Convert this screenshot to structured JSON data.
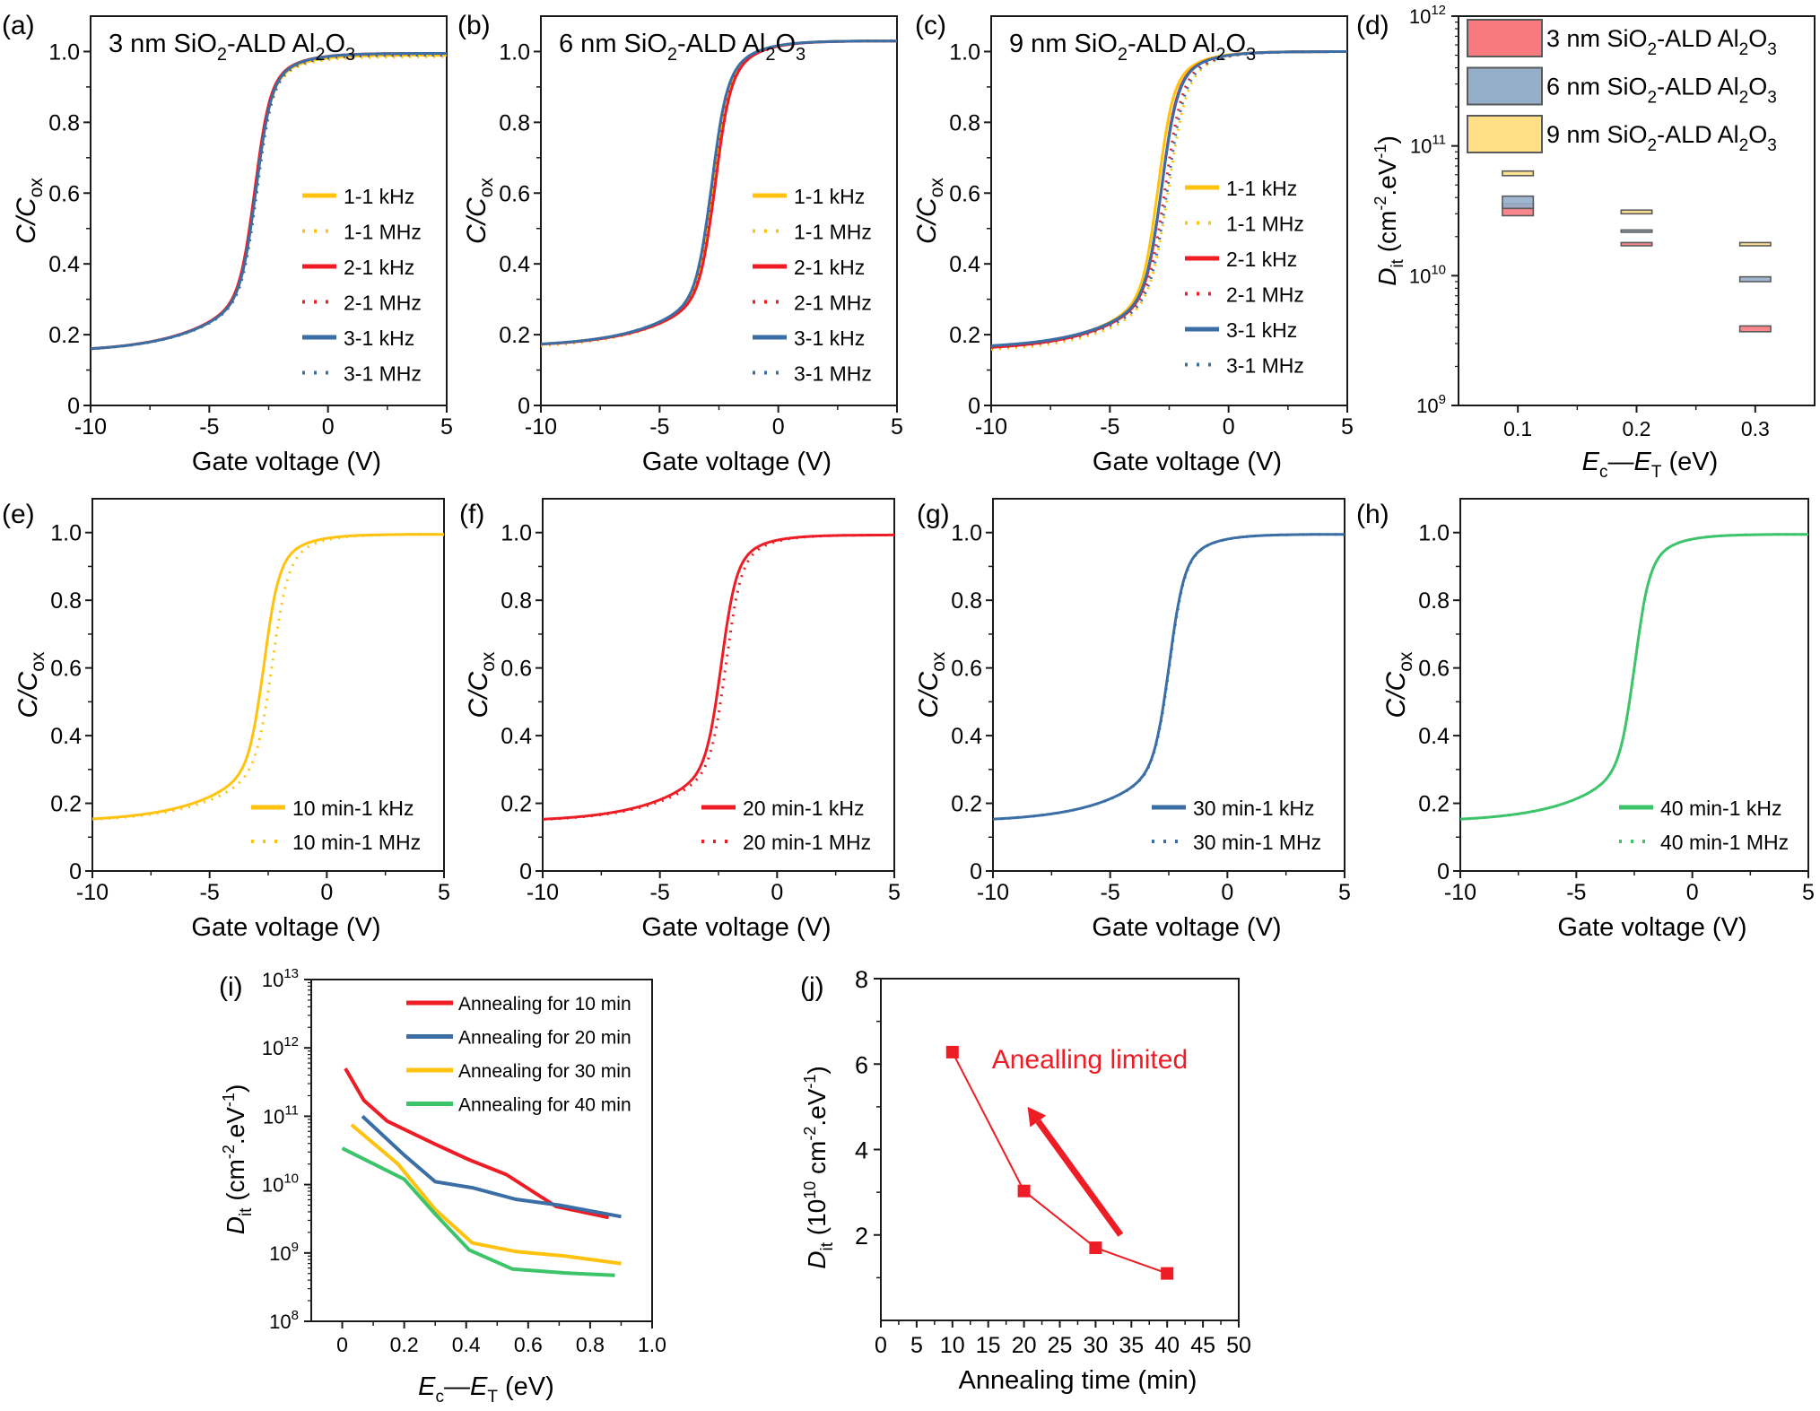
{
  "figure": {
    "colors": {
      "yellow": "#FFC20E",
      "red": "#EE1C25",
      "blue": "#3A6EA5",
      "green": "#3DC46A",
      "box_red": "#F87A7E",
      "box_blue": "#95AFCB",
      "box_yellow": "#FFDF85",
      "box_edge": "#5A5A5A",
      "axis": "#1A1A1A"
    }
  },
  "chart_data": [
    {
      "id": "a",
      "panel_label": "(a)",
      "type": "line",
      "title": "3 nm SiO2-ALD Al2O3",
      "title_parts": {
        "pre": "3 nm SiO",
        "sub1": "2",
        "mid": "-ALD Al",
        "sub2": "2",
        "mid2": "O",
        "sub3": "3"
      },
      "xlabel": "Gate voltage (V)",
      "ylabel": "C/C",
      "ylabel_sub": "ox",
      "xlim": [
        -10,
        5
      ],
      "ylim": [
        0,
        1.1
      ],
      "xticks": [
        -10,
        -5,
        0,
        5
      ],
      "xtick_labels": [
        "-10",
        "-5",
        "0",
        "5"
      ],
      "yticks": [
        0,
        0.2,
        0.4,
        0.6,
        0.8,
        1.0
      ],
      "ytick_labels": [
        "0",
        "0.2",
        "0.4",
        "0.6",
        "0.8",
        "1.0"
      ],
      "legend_position": "center-right",
      "series": [
        {
          "name": "1-1 kHz",
          "color": "yellow",
          "style": "solid",
          "vth": -3.05,
          "cmin": 0.15,
          "cmax": 0.99,
          "steep": 1.0
        },
        {
          "name": "1-1 MHz",
          "color": "yellow",
          "style": "dotted",
          "vth": -3.0,
          "cmin": 0.15,
          "cmax": 0.985,
          "steep": 1.0
        },
        {
          "name": "2-1 kHz",
          "color": "red",
          "style": "solid",
          "vth": -3.1,
          "cmin": 0.15,
          "cmax": 0.995,
          "steep": 1.0
        },
        {
          "name": "2-1 MHz",
          "color": "red",
          "style": "dotted",
          "vth": -3.05,
          "cmin": 0.15,
          "cmax": 0.99,
          "steep": 1.0
        },
        {
          "name": "3-1 kHz",
          "color": "blue",
          "style": "solid",
          "vth": -3.05,
          "cmin": 0.15,
          "cmax": 0.995,
          "steep": 1.0
        },
        {
          "name": "3-1 MHz",
          "color": "blue",
          "style": "dotted",
          "vth": -3.0,
          "cmin": 0.15,
          "cmax": 0.99,
          "steep": 1.0
        }
      ]
    },
    {
      "id": "b",
      "panel_label": "(b)",
      "type": "line",
      "title": "6 nm SiO2-ALD Al2O3",
      "title_parts": {
        "pre": "6 nm SiO",
        "sub1": "2",
        "mid": "-ALD Al",
        "sub2": "2",
        "mid2": "O",
        "sub3": "3"
      },
      "xlabel": "Gate voltage (V)",
      "ylabel": "C/C",
      "ylabel_sub": "ox",
      "xlim": [
        -10,
        5
      ],
      "ylim": [
        0,
        1.1
      ],
      "xticks": [
        -10,
        -5,
        0,
        5
      ],
      "xtick_labels": [
        "-10",
        "-5",
        "0",
        "5"
      ],
      "yticks": [
        0,
        0.2,
        0.4,
        0.6,
        0.8,
        1.0
      ],
      "ytick_labels": [
        "0",
        "0.2",
        "0.4",
        "0.6",
        "0.8",
        "1.0"
      ],
      "legend_position": "center-right",
      "series": [
        {
          "name": "1-1 kHz",
          "color": "yellow",
          "style": "solid",
          "vth": -2.8,
          "cmin": 0.165,
          "cmax": 1.03,
          "steep": 1.0
        },
        {
          "name": "1-1 MHz",
          "color": "yellow",
          "style": "dotted",
          "vth": -2.75,
          "cmin": 0.16,
          "cmax": 1.03,
          "steep": 1.0
        },
        {
          "name": "2-1 kHz",
          "color": "red",
          "style": "solid",
          "vth": -2.7,
          "cmin": 0.165,
          "cmax": 1.03,
          "steep": 1.0
        },
        {
          "name": "2-1 MHz",
          "color": "red",
          "style": "dotted",
          "vth": -2.75,
          "cmin": 0.165,
          "cmax": 1.03,
          "steep": 1.0
        },
        {
          "name": "3-1 kHz",
          "color": "blue",
          "style": "solid",
          "vth": -2.85,
          "cmin": 0.165,
          "cmax": 1.03,
          "steep": 1.0
        },
        {
          "name": "3-1 MHz",
          "color": "blue",
          "style": "dotted",
          "vth": -2.85,
          "cmin": 0.165,
          "cmax": 1.03,
          "steep": 1.0
        }
      ]
    },
    {
      "id": "c",
      "panel_label": "(c)",
      "type": "line",
      "title": "9 nm SiO2-ALD Al2O3",
      "title_parts": {
        "pre": "9 nm SiO",
        "sub1": "2",
        "mid": "-ALD Al",
        "sub2": "2",
        "mid2": "O",
        "sub3": "3"
      },
      "xlabel": "Gate voltage (V)",
      "ylabel": "C/C",
      "ylabel_sub": "ox",
      "xlim": [
        -10,
        5
      ],
      "ylim": [
        0,
        1.1
      ],
      "xticks": [
        -10,
        -5,
        0,
        5
      ],
      "xtick_labels": [
        "-10",
        "-5",
        "0",
        "5"
      ],
      "yticks": [
        0,
        0.2,
        0.4,
        0.6,
        0.8,
        1.0
      ],
      "ytick_labels": [
        "0",
        "0.2",
        "0.4",
        "0.6",
        "0.8",
        "1.0"
      ],
      "legend_position": "center-right",
      "series": [
        {
          "name": "1-1 kHz",
          "color": "yellow",
          "style": "solid",
          "vth": -3.0,
          "cmin": 0.155,
          "cmax": 1.0,
          "steep": 1.0
        },
        {
          "name": "1-1 MHz",
          "color": "yellow",
          "style": "dotted",
          "vth": -2.55,
          "cmin": 0.15,
          "cmax": 1.0,
          "steep": 0.85
        },
        {
          "name": "2-1 kHz",
          "color": "red",
          "style": "solid",
          "vth": -2.85,
          "cmin": 0.155,
          "cmax": 1.0,
          "steep": 1.0
        },
        {
          "name": "2-1 MHz",
          "color": "red",
          "style": "dotted",
          "vth": -2.7,
          "cmin": 0.155,
          "cmax": 1.0,
          "steep": 0.9
        },
        {
          "name": "3-1 kHz",
          "color": "blue",
          "style": "solid",
          "vth": -2.85,
          "cmin": 0.16,
          "cmax": 1.0,
          "steep": 0.95
        },
        {
          "name": "3-1 MHz",
          "color": "blue",
          "style": "dotted",
          "vth": -2.6,
          "cmin": 0.16,
          "cmax": 1.0,
          "steep": 0.9
        }
      ]
    },
    {
      "id": "d",
      "panel_label": "(d)",
      "type": "box",
      "xlabel": "E",
      "xlabel_sub1": "c",
      "xlabel_mid": "—E",
      "xlabel_sub2": "T",
      "xlabel_post": " (eV)",
      "ylabel": "D",
      "ylabel_sub": "it",
      "ylabel_post": " (cm",
      "ylabel_sup1": "-2",
      "ylabel_mid": ".eV",
      "ylabel_sup2": "-1",
      "ylabel_end": ")",
      "yscale": "log",
      "ylim": [
        1000000000.0,
        1000000000000.0
      ],
      "xlim": [
        0.05,
        0.35
      ],
      "xticks": [
        0.1,
        0.2,
        0.3
      ],
      "xtick_labels": [
        "0.1",
        "0.2",
        "0.3"
      ],
      "yticks_exp": [
        9,
        10,
        11,
        12
      ],
      "legend_position": "top",
      "series": [
        {
          "name": "3 nm SiO2-ALD Al2O3",
          "label_pre": "3 nm SiO",
          "color": "box_red",
          "boxes": [
            {
              "x": 0.1,
              "low": 29000000000.0,
              "high": 36000000000.0
            },
            {
              "x": 0.2,
              "low": 17000000000.0,
              "high": 18000000000.0
            },
            {
              "x": 0.3,
              "low": 3700000000.0,
              "high": 4100000000.0
            }
          ]
        },
        {
          "name": "6 nm SiO2-ALD Al2O3",
          "label_pre": "6 nm SiO",
          "color": "box_blue",
          "boxes": [
            {
              "x": 0.1,
              "low": 33000000000.0,
              "high": 41000000000.0
            },
            {
              "x": 0.2,
              "low": 22000000000.0,
              "high": 22500000000.0
            },
            {
              "x": 0.3,
              "low": 9000000000.0,
              "high": 9800000000.0
            }
          ]
        },
        {
          "name": "9 nm SiO2-ALD Al2O3",
          "label_pre": "9 nm SiO",
          "color": "box_yellow",
          "boxes": [
            {
              "x": 0.1,
              "low": 59000000000.0,
              "high": 64000000000.0
            },
            {
              "x": 0.2,
              "low": 30000000000.0,
              "high": 32000000000.0
            },
            {
              "x": 0.3,
              "low": 17000000000.0,
              "high": 18000000000.0
            }
          ]
        }
      ]
    },
    {
      "id": "e",
      "panel_label": "(e)",
      "type": "line",
      "xlabel": "Gate voltage (V)",
      "ylabel": "C/C",
      "ylabel_sub": "ox",
      "xlim": [
        -10,
        5
      ],
      "ylim": [
        0,
        1.1
      ],
      "xticks": [
        -10,
        -5,
        0,
        5
      ],
      "xtick_labels": [
        "-10",
        "-5",
        "0",
        "5"
      ],
      "yticks": [
        0,
        0.2,
        0.4,
        0.6,
        0.8,
        1.0
      ],
      "ytick_labels": [
        "0",
        "0.2",
        "0.4",
        "0.6",
        "0.8",
        "1.0"
      ],
      "legend_position": "bottom-right",
      "series": [
        {
          "name": "10 min-1 kHz",
          "color": "yellow",
          "style": "solid",
          "vth": -2.7,
          "cmin": 0.145,
          "cmax": 0.995,
          "steep": 1.0
        },
        {
          "name": "10 min-1 MHz",
          "color": "yellow",
          "style": "dotted",
          "vth": -2.35,
          "cmin": 0.145,
          "cmax": 0.995,
          "steep": 0.95
        }
      ]
    },
    {
      "id": "f",
      "panel_label": "(f)",
      "type": "line",
      "xlabel": "Gate voltage (V)",
      "ylabel": "C/C",
      "ylabel_sub": "ox",
      "xlim": [
        -10,
        5
      ],
      "ylim": [
        0,
        1.1
      ],
      "xticks": [
        -10,
        -5,
        0,
        5
      ],
      "xtick_labels": [
        "-10",
        "-5",
        "0",
        "5"
      ],
      "yticks": [
        0,
        0.2,
        0.4,
        0.6,
        0.8,
        1.0
      ],
      "ytick_labels": [
        "0",
        "0.2",
        "0.4",
        "0.6",
        "0.8",
        "1.0"
      ],
      "legend_position": "bottom-right",
      "series": [
        {
          "name": "20 min-1 kHz",
          "color": "red",
          "style": "solid",
          "vth": -2.4,
          "cmin": 0.145,
          "cmax": 0.993,
          "steep": 1.0
        },
        {
          "name": "20 min-1 MHz",
          "color": "red",
          "style": "dotted",
          "vth": -2.2,
          "cmin": 0.145,
          "cmax": 0.993,
          "steep": 1.0
        }
      ]
    },
    {
      "id": "g",
      "panel_label": "(g)",
      "type": "line",
      "xlabel": "Gate voltage (V)",
      "ylabel": "C/C",
      "ylabel_sub": "ox",
      "xlim": [
        -10,
        5
      ],
      "ylim": [
        0,
        1.1
      ],
      "xticks": [
        -10,
        -5,
        0,
        5
      ],
      "xtick_labels": [
        "-10",
        "-5",
        "0",
        "5"
      ],
      "yticks": [
        0,
        0.2,
        0.4,
        0.6,
        0.8,
        1.0
      ],
      "ytick_labels": [
        "0",
        "0.2",
        "0.4",
        "0.6",
        "0.8",
        "1.0"
      ],
      "legend_position": "bottom-right",
      "series": [
        {
          "name": "30 min-1 kHz",
          "color": "blue",
          "style": "solid",
          "vth": -2.5,
          "cmin": 0.145,
          "cmax": 0.995,
          "steep": 1.0
        },
        {
          "name": "30 min-1 MHz",
          "color": "blue",
          "style": "dotted",
          "vth": -2.48,
          "cmin": 0.145,
          "cmax": 0.995,
          "steep": 1.0
        }
      ]
    },
    {
      "id": "h",
      "panel_label": "(h)",
      "type": "line",
      "xlabel": "Gate voltage (V)",
      "ylabel": "C/C",
      "ylabel_sub": "ox",
      "xlim": [
        -10,
        5
      ],
      "ylim": [
        0,
        1.1
      ],
      "xticks": [
        -10,
        -5,
        0,
        5
      ],
      "xtick_labels": [
        "-10",
        "-5",
        "0",
        "5"
      ],
      "yticks": [
        0,
        0.2,
        0.4,
        0.6,
        0.8,
        1.0
      ],
      "ytick_labels": [
        "0",
        "0.2",
        "0.4",
        "0.6",
        "0.8",
        "1.0"
      ],
      "legend_position": "bottom-right",
      "series": [
        {
          "name": "40 min-1 kHz",
          "color": "green",
          "style": "solid",
          "vth": -2.5,
          "cmin": 0.145,
          "cmax": 0.995,
          "steep": 1.0
        },
        {
          "name": "40 min-1 MHz",
          "color": "green",
          "style": "dotted",
          "vth": -2.5,
          "cmin": 0.145,
          "cmax": 0.995,
          "steep": 1.0
        }
      ]
    },
    {
      "id": "i",
      "panel_label": "(i)",
      "type": "line",
      "yscale": "log",
      "xlabel": "E",
      "xlabel_sub1": "c",
      "xlabel_mid": "—E",
      "xlabel_sub2": "T",
      "xlabel_post": " (eV)",
      "ylabel": "D",
      "ylabel_sub": "it",
      "ylabel_post": " (cm",
      "ylabel_sup1": "-2",
      "ylabel_mid": ".eV",
      "ylabel_sup2": "-1",
      "ylabel_end": ")",
      "xlim": [
        -0.1,
        1.0
      ],
      "ylim": [
        100000000.0,
        10000000000000.0
      ],
      "xticks": [
        0,
        0.2,
        0.4,
        0.6,
        0.8,
        1.0
      ],
      "xtick_labels": [
        "0",
        "0.2",
        "0.4",
        "0.6",
        "0.8",
        "1.0"
      ],
      "yticks_exp": [
        8,
        9,
        10,
        11,
        12,
        13
      ],
      "legend_position": "top-right",
      "series": [
        {
          "name": "Annealing for 10 min",
          "color": "red",
          "x": [
            0.01,
            0.07,
            0.145,
            0.3,
            0.41,
            0.53,
            0.69,
            0.86
          ],
          "y": [
            500000000000.0,
            170000000000.0,
            85000000000.0,
            39000000000.0,
            23000000000.0,
            14000000000.0,
            4800000000.0,
            3300000000.0
          ]
        },
        {
          "name": "Annealing for 20 min",
          "color": "blue",
          "x": [
            0.065,
            0.2,
            0.3,
            0.42,
            0.56,
            0.7,
            0.9
          ],
          "y": [
            100000000000.0,
            27000000000.0,
            11000000000.0,
            9000000000.0,
            6100000000.0,
            5000000000.0,
            3400000000.0
          ]
        },
        {
          "name": "Annealing for 30 min",
          "color": "yellow",
          "x": [
            0.03,
            0.18,
            0.3,
            0.42,
            0.56,
            0.72,
            0.9
          ],
          "y": [
            75000000000.0,
            20000000000.0,
            4300000000.0,
            1400000000.0,
            1050000000.0,
            900000000.0,
            700000000.0
          ]
        },
        {
          "name": "Annealing for 40 min",
          "color": "green",
          "x": [
            0.0,
            0.2,
            0.3,
            0.41,
            0.55,
            0.72,
            0.88
          ],
          "y": [
            34000000000.0,
            12000000000.0,
            3700000000.0,
            1100000000.0,
            580000000.0,
            510000000.0,
            470000000.0
          ]
        }
      ]
    },
    {
      "id": "j",
      "panel_label": "(j)",
      "type": "scatter",
      "xlabel": "Annealing time (min)",
      "ylabel": "D",
      "ylabel_sub": "it",
      "ylabel_post": " (10",
      "ylabel_sup0": "10",
      "ylabel_post2": " cm",
      "ylabel_sup1": "-2",
      "ylabel_mid": ".eV",
      "ylabel_sup2": "-1",
      "ylabel_end": ")",
      "xlim": [
        0,
        50
      ],
      "ylim": [
        0,
        8
      ],
      "xticks": [
        0,
        5,
        10,
        15,
        20,
        25,
        30,
        35,
        40,
        45,
        50
      ],
      "xtick_labels": [
        "0",
        "5",
        "10",
        "15",
        "20",
        "25",
        "30",
        "35",
        "40",
        "45",
        "50"
      ],
      "yticks": [
        2,
        4,
        6,
        8
      ],
      "ytick_labels": [
        "2",
        "4",
        "6",
        "8"
      ],
      "series": [
        {
          "name": "Dit",
          "color": "red",
          "x": [
            10,
            20,
            30,
            40
          ],
          "y": [
            6.28,
            3.03,
            1.7,
            1.1
          ]
        }
      ],
      "annotation": {
        "text": "Anealling limited",
        "color": "red",
        "arrow_from": [
          33.5,
          2.0
        ],
        "arrow_to": [
          20.5,
          5.0
        ],
        "text_at": [
          15.5,
          5.9
        ]
      }
    }
  ]
}
